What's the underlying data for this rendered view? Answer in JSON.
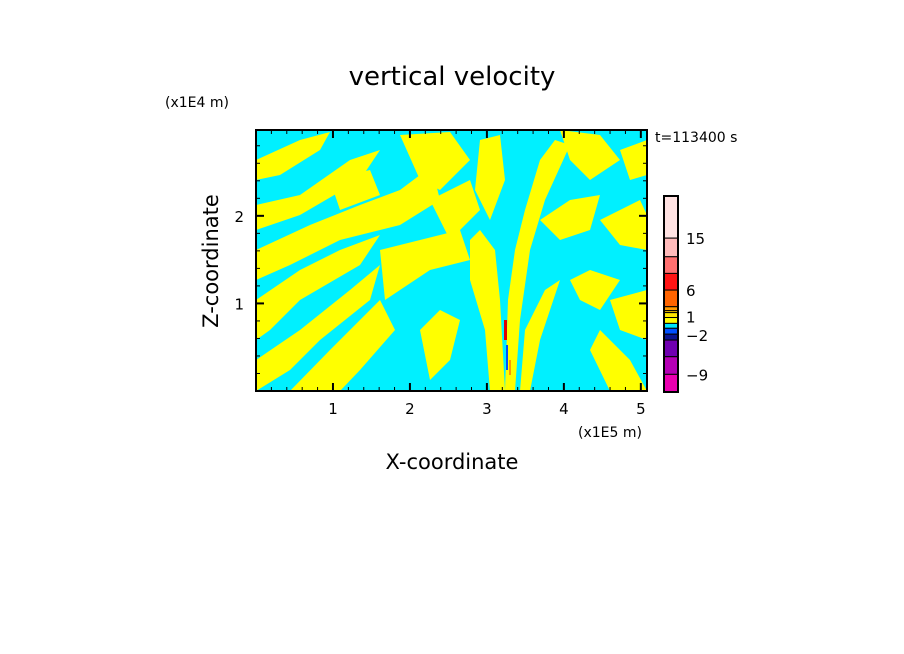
{
  "chart_data": {
    "type": "heatmap",
    "title": "vertical velocity",
    "xlabel": "X-coordinate",
    "ylabel": "Z-coordinate",
    "x_unit": "(x1E5 m)",
    "y_unit": "(x1E4 m)",
    "time_label": "t=113400 s",
    "xlim": [
      0,
      5.08
    ],
    "ylim": [
      0,
      2.98
    ],
    "x_ticks": [
      1,
      2,
      3,
      4,
      5
    ],
    "y_ticks": [
      1,
      2
    ],
    "dominant_colors": {
      "positive_small": "#ffff00",
      "negative_small": "#00f0ff"
    },
    "colorbar": {
      "labels": [
        {
          "text": "15",
          "level": 0.215
        },
        {
          "text": "6",
          "level": 0.48
        },
        {
          "text": "1",
          "level": 0.615
        },
        {
          "text": "-2",
          "level": 0.71
        },
        {
          "text": "-9",
          "level": 0.91
        }
      ],
      "colors": [
        "#ffe2e2",
        "#ffbaba",
        "#ff7070",
        "#ff1414",
        "#ff6400",
        "#ff9a00",
        "#ffc800",
        "#ffe600",
        "#ffff00",
        "#00e6ff",
        "#0050ff",
        "#0a1490",
        "#7000b0",
        "#b400b4",
        "#ea00b0"
      ],
      "bounds": [
        0,
        0.215,
        0.31,
        0.395,
        0.48,
        0.565,
        0.585,
        0.595,
        0.62,
        0.65,
        0.675,
        0.705,
        0.735,
        0.82,
        0.91,
        1.0
      ]
    }
  }
}
